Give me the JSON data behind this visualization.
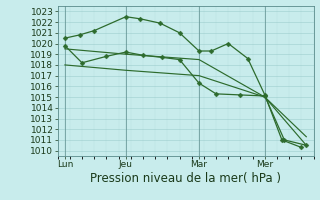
{
  "background_color": "#c8ecec",
  "grid_color_major": "#9ecece",
  "grid_color_minor": "#b8dede",
  "line_color": "#2d6b2d",
  "vline_color": "#5a8a8a",
  "title": "Pression niveau de la mer( hPa )",
  "ylim": [
    1009.5,
    1023.5
  ],
  "xlim": [
    0,
    10.5
  ],
  "xtick_labels": [
    "Lun",
    "Jeu",
    "Mar",
    "Mer"
  ],
  "xtick_positions": [
    0.3,
    2.8,
    5.8,
    8.5
  ],
  "vline_positions": [
    0.3,
    2.8,
    5.8,
    8.5
  ],
  "lines": [
    {
      "x": [
        0.3,
        0.9,
        1.5,
        2.8,
        3.4,
        4.2,
        5.0,
        5.8,
        6.3,
        7.0,
        7.8,
        8.5,
        9.2,
        10.0
      ],
      "y": [
        1020.5,
        1020.8,
        1021.2,
        1022.5,
        1022.3,
        1021.9,
        1021.0,
        1019.3,
        1019.3,
        1020.0,
        1018.6,
        1015.2,
        1011.0,
        1010.3
      ],
      "marker": "D",
      "markersize": 2.5,
      "linewidth": 0.9
    },
    {
      "x": [
        0.3,
        1.0,
        2.0,
        2.8,
        3.5,
        4.3,
        5.0,
        5.8,
        6.5,
        7.5,
        8.5,
        9.3,
        10.2
      ],
      "y": [
        1019.8,
        1018.2,
        1018.8,
        1019.2,
        1018.9,
        1018.7,
        1018.5,
        1016.3,
        1015.3,
        1015.2,
        1015.1,
        1011.0,
        1010.5
      ],
      "marker": "D",
      "markersize": 2.5,
      "linewidth": 0.9
    },
    {
      "x": [
        0.3,
        2.8,
        5.8,
        8.5,
        10.2
      ],
      "y": [
        1019.5,
        1019.0,
        1018.5,
        1015.0,
        1011.3
      ],
      "marker": null,
      "markersize": 0,
      "linewidth": 0.85
    },
    {
      "x": [
        0.3,
        2.8,
        5.8,
        8.5,
        10.2
      ],
      "y": [
        1018.0,
        1017.5,
        1017.0,
        1015.0,
        1010.5
      ],
      "marker": null,
      "markersize": 0,
      "linewidth": 0.85
    }
  ],
  "title_fontsize": 8.5,
  "tick_fontsize": 6.5,
  "figsize": [
    3.2,
    2.0
  ],
  "dpi": 100
}
